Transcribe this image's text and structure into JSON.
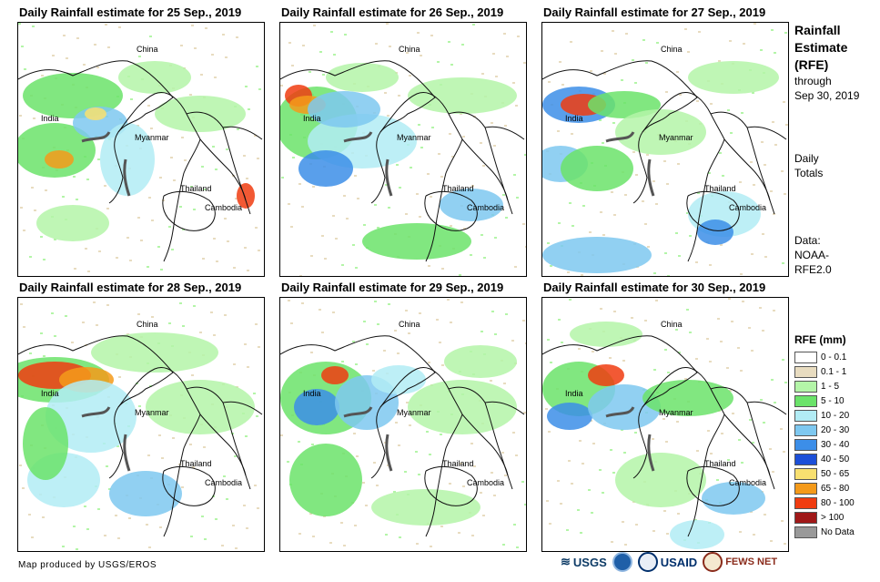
{
  "panels": [
    {
      "title": "Daily Rainfall estimate for 25 Sep., 2019",
      "labels": {
        "china": "China",
        "india": "India",
        "myanmar": "Myanmar",
        "thailand": "Thailand",
        "cambodia": "Cambodia"
      }
    },
    {
      "title": "Daily Rainfall estimate for 26 Sep., 2019",
      "labels": {
        "china": "China",
        "india": "India",
        "myanmar": "Myanmar",
        "thailand": "Thailand",
        "cambodia": "Cambodia"
      }
    },
    {
      "title": "Daily Rainfall estimate for 27 Sep., 2019",
      "labels": {
        "china": "China",
        "india": "India",
        "myanmar": "Myanmar",
        "thailand": "Thailand",
        "cambodia": "Cambodia"
      }
    },
    {
      "title": "Daily Rainfall estimate for 28 Sep., 2019",
      "labels": {
        "china": "China",
        "india": "India",
        "myanmar": "Myanmar",
        "thailand": "Thailand",
        "cambodia": "Cambodia"
      }
    },
    {
      "title": "Daily Rainfall estimate for 29 Sep., 2019",
      "labels": {
        "china": "China",
        "india": "India",
        "myanmar": "Myanmar",
        "thailand": "Thailand",
        "cambodia": "Cambodia"
      }
    },
    {
      "title": "Daily Rainfall estimate for 30 Sep., 2019",
      "labels": {
        "china": "China",
        "india": "India",
        "myanmar": "Myanmar",
        "thailand": "Thailand",
        "cambodia": "Cambodia"
      }
    }
  ],
  "side": {
    "title_line1": "Rainfall",
    "title_line2": "Estimate",
    "title_line3": "(RFE)",
    "period_line1": "through",
    "period_line2": "Sep 30, 2019",
    "totals_line1": "Daily",
    "totals_line2": "Totals",
    "data_line1": "Data:",
    "data_line2": "NOAA-",
    "data_line3": "RFE2.0"
  },
  "legend": {
    "title": "RFE (mm)",
    "items": [
      {
        "label": "0 - 0.1",
        "color": "#ffffff"
      },
      {
        "label": "0.1 - 1",
        "color": "#e8dcc0"
      },
      {
        "label": "1 - 5",
        "color": "#b4f5a8"
      },
      {
        "label": "5 - 10",
        "color": "#6be36a"
      },
      {
        "label": "10 - 20",
        "color": "#b2ecf5"
      },
      {
        "label": "20 - 30",
        "color": "#7ec8f0"
      },
      {
        "label": "30 - 40",
        "color": "#3c8ee8"
      },
      {
        "label": "40 - 50",
        "color": "#1c4fd8"
      },
      {
        "label": "50 - 65",
        "color": "#f8e070"
      },
      {
        "label": "65 - 80",
        "color": "#f49a1a"
      },
      {
        "label": "80 - 100",
        "color": "#f03c10"
      },
      {
        "label": "> 100",
        "color": "#a01818"
      },
      {
        "label": "No Data",
        "color": "#999999"
      }
    ]
  },
  "credit": "Map produced by USGS/EROS",
  "logos": {
    "usgs": "USGS",
    "usaid": "USAID",
    "fews": "FEWS NET"
  }
}
